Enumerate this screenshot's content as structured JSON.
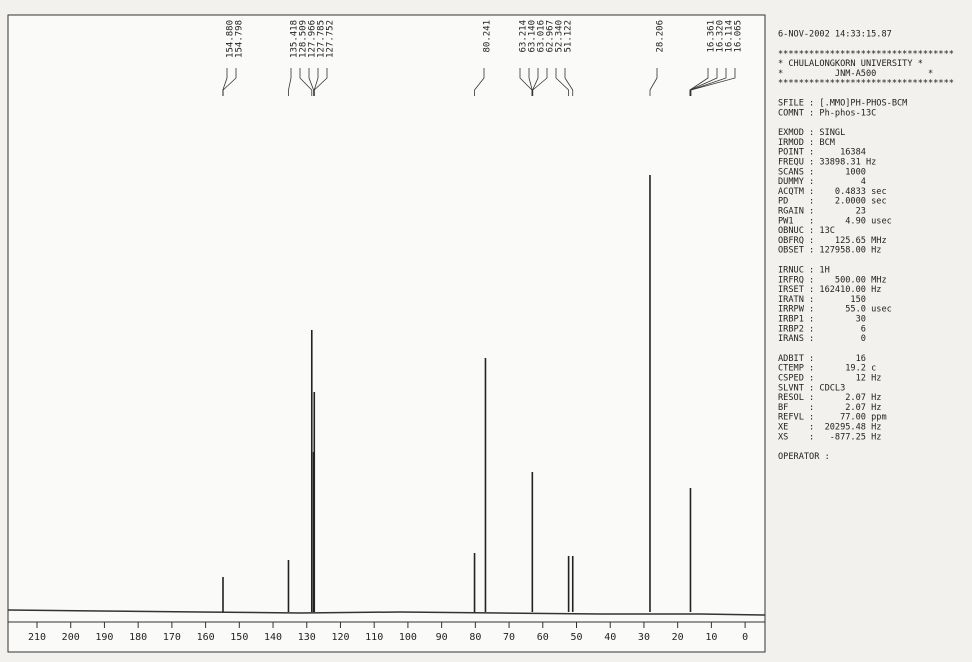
{
  "chart_data": {
    "type": "spectrum",
    "x": [
      154.84,
      135.42,
      128.51,
      127.97,
      127.77,
      80.24,
      77.0,
      63.1,
      52.34,
      51.12,
      28.21,
      16.2
    ],
    "values": [
      35,
      52,
      282,
      160,
      220,
      59,
      254,
      140,
      56,
      56,
      437,
      124
    ],
    "color": "#222222",
    "xlim": [
      218.6,
      -5.9
    ],
    "ylim": [
      0,
      600
    ],
    "xticks": [
      210,
      200,
      190,
      180,
      170,
      160,
      150,
      140,
      130,
      120,
      110,
      100,
      90,
      80,
      70,
      60,
      50,
      40,
      30,
      20,
      10,
      0
    ],
    "peak_labels": [
      "154.880",
      "154.798",
      "135.418",
      "128.509",
      "127.966",
      "127.785",
      "127.752",
      "80.241",
      "63.214",
      "63.140",
      "63.016",
      "62.967",
      "52.340",
      "51.122",
      "28.206",
      "16.361",
      "16.320",
      "16.114",
      "16.065"
    ]
  },
  "parameters": [
    [
      "6-NOV-2002 14:33:15.87"
    ],
    [
      "**********************************",
      "* CHULALONGKORN UNIVERSITY *",
      "*          JNM-A500          *",
      "**********************************"
    ],
    [
      "SFILE : [.MMO]PH-PHOS-BCM",
      "COMNT : Ph-phos-13C"
    ],
    [
      "EXMOD : SINGL",
      "IRMOD : BCM",
      "POINT :     16384",
      "FREQU : 33898.31 Hz",
      "SCANS :      1000",
      "DUMMY :         4",
      "ACQTM :    0.4833 sec",
      "PD    :    2.0000 sec",
      "RGAIN :        23",
      "PW1   :      4.90 usec",
      "OBNUC : 13C",
      "OBFRQ :    125.65 MHz",
      "OBSET : 127958.00 Hz"
    ],
    [
      "IRNUC : 1H",
      "IRFRQ :    500.00 MHz",
      "IRSET : 162410.00 Hz",
      "IRATN :       150",
      "IRRPW :      55.0 usec",
      "IRBP1 :        30",
      "IRBP2 :         6",
      "IRANS :         0"
    ],
    [
      "ADBIT :        16",
      "CTEMP :      19.2 c",
      "CSPED :        12 Hz",
      "SLVNT : CDCL3",
      "RESOL :      2.07 Hz",
      "BF    :      2.07 Hz",
      "REFVL :     77.00 ppm",
      "XE    :  20295.48 Hz",
      "XS    :   -877.25 Hz"
    ],
    [
      "OPERATOR :"
    ]
  ]
}
